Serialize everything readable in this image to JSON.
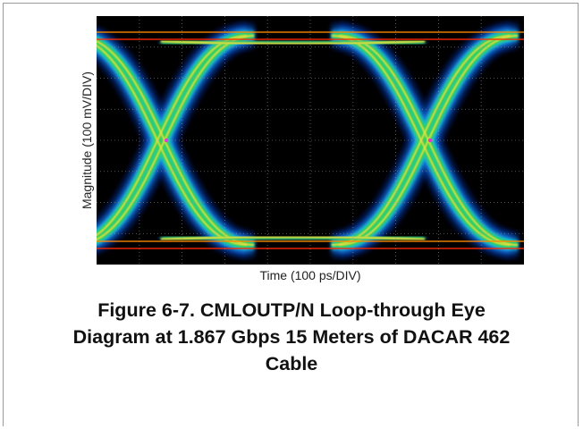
{
  "chart_data": {
    "type": "eye-diagram",
    "xlabel": "Time (100 ps/DIV)",
    "ylabel": "Magnitude (100 mV/DIV)",
    "grid": true,
    "grid_divisions": {
      "x": 10,
      "y": 8
    },
    "colormap": [
      "#0a2a8a",
      "#1a7be0",
      "#18c8d8",
      "#34d34a",
      "#a4e02a",
      "#f0e040",
      "#ff8a00",
      "#ff2a00"
    ]
  },
  "caption": {
    "line1": "Figure 6-7. CMLOUTP/N Loop-through Eye",
    "line2": "Diagram at 1.867 Gbps 15 Meters of DACAR 462",
    "line3": "Cable"
  }
}
